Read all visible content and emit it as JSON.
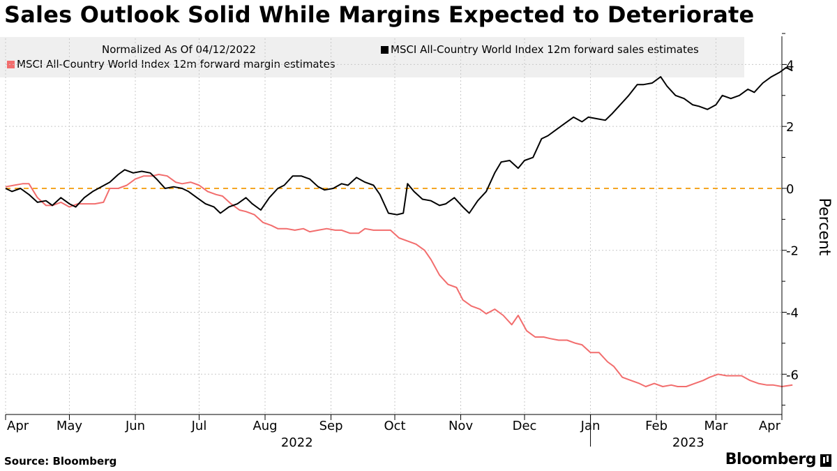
{
  "chart_data": {
    "type": "line",
    "title": "Sales Outlook Solid While Margins Expected to Deteriorate",
    "note": "Normalized As Of 04/12/2022",
    "ylabel": "Percent",
    "ylim": [
      -7.3,
      5
    ],
    "yticks": [
      -6,
      -4,
      -2,
      0,
      2,
      4
    ],
    "y_tick_labels": [
      "-6",
      "-4",
      "-2",
      "0",
      "2",
      "4"
    ],
    "xlim": [
      "2022-04-01",
      "2023-04-01"
    ],
    "x_ticks": [
      {
        "date": "2022-04-01",
        "label": "Apr"
      },
      {
        "date": "2022-05-01",
        "label": "May"
      },
      {
        "date": "2022-06-01",
        "label": "Jun"
      },
      {
        "date": "2022-07-01",
        "label": "Jul"
      },
      {
        "date": "2022-08-01",
        "label": "Aug"
      },
      {
        "date": "2022-09-01",
        "label": "Sep"
      },
      {
        "date": "2022-10-01",
        "label": "Oct"
      },
      {
        "date": "2022-11-01",
        "label": "Nov"
      },
      {
        "date": "2022-12-01",
        "label": "Dec"
      },
      {
        "date": "2023-01-01",
        "label": "Jan"
      },
      {
        "date": "2023-02-01",
        "label": "Feb"
      },
      {
        "date": "2023-03-01",
        "label": "Mar"
      },
      {
        "date": "2023-04-01",
        "label": "Apr"
      }
    ],
    "year_labels": [
      {
        "date": "2022-08-16",
        "label": "2022"
      },
      {
        "date": "2023-02-16",
        "label": "2023"
      }
    ],
    "grid": true,
    "legend_position": "top",
    "reference_line": {
      "y": 0,
      "color": "#f5a623",
      "style": "dashed"
    },
    "series": [
      {
        "name": "MSCI All-Country World Index 12m forward sales estimates",
        "color": "#000000",
        "points": [
          [
            "2022-04-01",
            0.0
          ],
          [
            "2022-04-04",
            -0.1
          ],
          [
            "2022-04-08",
            0.0
          ],
          [
            "2022-04-12",
            -0.2
          ],
          [
            "2022-04-16",
            -0.45
          ],
          [
            "2022-04-20",
            -0.4
          ],
          [
            "2022-04-23",
            -0.55
          ],
          [
            "2022-04-27",
            -0.3
          ],
          [
            "2022-05-01",
            -0.5
          ],
          [
            "2022-05-04",
            -0.6
          ],
          [
            "2022-05-08",
            -0.3
          ],
          [
            "2022-05-12",
            -0.1
          ],
          [
            "2022-05-16",
            0.05
          ],
          [
            "2022-05-20",
            0.2
          ],
          [
            "2022-05-24",
            0.45
          ],
          [
            "2022-05-27",
            0.6
          ],
          [
            "2022-05-31",
            0.5
          ],
          [
            "2022-06-04",
            0.55
          ],
          [
            "2022-06-08",
            0.5
          ],
          [
            "2022-06-11",
            0.3
          ],
          [
            "2022-06-15",
            0.0
          ],
          [
            "2022-06-19",
            0.05
          ],
          [
            "2022-06-23",
            0.0
          ],
          [
            "2022-06-26",
            -0.1
          ],
          [
            "2022-06-30",
            -0.3
          ],
          [
            "2022-07-04",
            -0.5
          ],
          [
            "2022-07-08",
            -0.6
          ],
          [
            "2022-07-11",
            -0.8
          ],
          [
            "2022-07-15",
            -0.6
          ],
          [
            "2022-07-19",
            -0.5
          ],
          [
            "2022-07-23",
            -0.3
          ],
          [
            "2022-07-26",
            -0.5
          ],
          [
            "2022-07-30",
            -0.7
          ],
          [
            "2022-08-03",
            -0.3
          ],
          [
            "2022-08-07",
            0.0
          ],
          [
            "2022-08-10",
            0.1
          ],
          [
            "2022-08-14",
            0.4
          ],
          [
            "2022-08-18",
            0.4
          ],
          [
            "2022-08-22",
            0.3
          ],
          [
            "2022-08-26",
            0.05
          ],
          [
            "2022-08-29",
            -0.05
          ],
          [
            "2022-09-02",
            0.0
          ],
          [
            "2022-09-06",
            0.15
          ],
          [
            "2022-09-09",
            0.1
          ],
          [
            "2022-09-13",
            0.35
          ],
          [
            "2022-09-17",
            0.2
          ],
          [
            "2022-09-21",
            0.1
          ],
          [
            "2022-09-24",
            -0.2
          ],
          [
            "2022-09-28",
            -0.8
          ],
          [
            "2022-10-02",
            -0.85
          ],
          [
            "2022-10-05",
            -0.8
          ],
          [
            "2022-10-07",
            0.15
          ],
          [
            "2022-10-10",
            -0.1
          ],
          [
            "2022-10-14",
            -0.35
          ],
          [
            "2022-10-18",
            -0.4
          ],
          [
            "2022-10-22",
            -0.55
          ],
          [
            "2022-10-25",
            -0.5
          ],
          [
            "2022-10-29",
            -0.3
          ],
          [
            "2022-11-02",
            -0.6
          ],
          [
            "2022-11-05",
            -0.8
          ],
          [
            "2022-11-09",
            -0.4
          ],
          [
            "2022-11-13",
            -0.1
          ],
          [
            "2022-11-17",
            0.5
          ],
          [
            "2022-11-20",
            0.85
          ],
          [
            "2022-11-24",
            0.9
          ],
          [
            "2022-11-28",
            0.65
          ],
          [
            "2022-12-01",
            0.9
          ],
          [
            "2022-12-05",
            1.0
          ],
          [
            "2022-12-09",
            1.6
          ],
          [
            "2022-12-12",
            1.7
          ],
          [
            "2022-12-16",
            1.9
          ],
          [
            "2022-12-20",
            2.1
          ],
          [
            "2022-12-24",
            2.3
          ],
          [
            "2022-12-28",
            2.15
          ],
          [
            "2022-12-31",
            2.3
          ],
          [
            "2023-01-04",
            2.25
          ],
          [
            "2023-01-08",
            2.2
          ],
          [
            "2023-01-11",
            2.4
          ],
          [
            "2023-01-15",
            2.7
          ],
          [
            "2023-01-19",
            3.0
          ],
          [
            "2023-01-23",
            3.35
          ],
          [
            "2023-01-26",
            3.35
          ],
          [
            "2023-01-30",
            3.4
          ],
          [
            "2023-02-03",
            3.6
          ],
          [
            "2023-02-06",
            3.3
          ],
          [
            "2023-02-10",
            3.0
          ],
          [
            "2023-02-14",
            2.9
          ],
          [
            "2023-02-18",
            2.7
          ],
          [
            "2023-02-21",
            2.65
          ],
          [
            "2023-02-25",
            2.55
          ],
          [
            "2023-03-01",
            2.7
          ],
          [
            "2023-03-04",
            3.0
          ],
          [
            "2023-03-08",
            2.9
          ],
          [
            "2023-03-12",
            3.0
          ],
          [
            "2023-03-16",
            3.2
          ],
          [
            "2023-03-19",
            3.1
          ],
          [
            "2023-03-23",
            3.4
          ],
          [
            "2023-03-27",
            3.6
          ],
          [
            "2023-03-31",
            3.75
          ],
          [
            "2023-04-03",
            3.9
          ],
          [
            "2023-04-06",
            3.8
          ]
        ]
      },
      {
        "name": "MSCI All-Country World Index 12m forward margin estimates",
        "color": "#f26d6d",
        "points": [
          [
            "2022-04-01",
            0.05
          ],
          [
            "2022-04-05",
            0.1
          ],
          [
            "2022-04-09",
            0.15
          ],
          [
            "2022-04-12",
            0.15
          ],
          [
            "2022-04-16",
            -0.3
          ],
          [
            "2022-04-20",
            -0.55
          ],
          [
            "2022-04-23",
            -0.55
          ],
          [
            "2022-04-27",
            -0.45
          ],
          [
            "2022-05-01",
            -0.6
          ],
          [
            "2022-05-05",
            -0.5
          ],
          [
            "2022-05-09",
            -0.5
          ],
          [
            "2022-05-13",
            -0.5
          ],
          [
            "2022-05-17",
            -0.45
          ],
          [
            "2022-05-20",
            0.0
          ],
          [
            "2022-05-24",
            0.0
          ],
          [
            "2022-05-28",
            0.1
          ],
          [
            "2022-06-01",
            0.3
          ],
          [
            "2022-06-05",
            0.4
          ],
          [
            "2022-06-09",
            0.4
          ],
          [
            "2022-06-12",
            0.45
          ],
          [
            "2022-06-16",
            0.4
          ],
          [
            "2022-06-20",
            0.2
          ],
          [
            "2022-06-23",
            0.15
          ],
          [
            "2022-06-27",
            0.2
          ],
          [
            "2022-07-01",
            0.1
          ],
          [
            "2022-07-05",
            -0.1
          ],
          [
            "2022-07-09",
            -0.2
          ],
          [
            "2022-07-12",
            -0.25
          ],
          [
            "2022-07-16",
            -0.5
          ],
          [
            "2022-07-20",
            -0.7
          ],
          [
            "2022-07-23",
            -0.75
          ],
          [
            "2022-07-27",
            -0.85
          ],
          [
            "2022-07-31",
            -1.1
          ],
          [
            "2022-08-04",
            -1.2
          ],
          [
            "2022-08-07",
            -1.3
          ],
          [
            "2022-08-11",
            -1.3
          ],
          [
            "2022-08-15",
            -1.35
          ],
          [
            "2022-08-19",
            -1.3
          ],
          [
            "2022-08-22",
            -1.4
          ],
          [
            "2022-08-26",
            -1.35
          ],
          [
            "2022-08-30",
            -1.3
          ],
          [
            "2022-09-03",
            -1.35
          ],
          [
            "2022-09-06",
            -1.35
          ],
          [
            "2022-09-10",
            -1.45
          ],
          [
            "2022-09-14",
            -1.45
          ],
          [
            "2022-09-17",
            -1.3
          ],
          [
            "2022-09-21",
            -1.35
          ],
          [
            "2022-09-25",
            -1.35
          ],
          [
            "2022-09-29",
            -1.35
          ],
          [
            "2022-10-03",
            -1.6
          ],
          [
            "2022-10-07",
            -1.7
          ],
          [
            "2022-10-11",
            -1.8
          ],
          [
            "2022-10-15",
            -2.0
          ],
          [
            "2022-10-18",
            -2.3
          ],
          [
            "2022-10-22",
            -2.8
          ],
          [
            "2022-10-26",
            -3.1
          ],
          [
            "2022-10-30",
            -3.2
          ],
          [
            "2022-11-02",
            -3.6
          ],
          [
            "2022-11-06",
            -3.8
          ],
          [
            "2022-11-10",
            -3.9
          ],
          [
            "2022-11-13",
            -4.05
          ],
          [
            "2022-11-17",
            -3.9
          ],
          [
            "2022-11-21",
            -4.1
          ],
          [
            "2022-11-25",
            -4.4
          ],
          [
            "2022-11-28",
            -4.1
          ],
          [
            "2022-12-02",
            -4.6
          ],
          [
            "2022-12-06",
            -4.8
          ],
          [
            "2022-12-10",
            -4.8
          ],
          [
            "2022-12-13",
            -4.85
          ],
          [
            "2022-12-17",
            -4.9
          ],
          [
            "2022-12-21",
            -4.9
          ],
          [
            "2022-12-25",
            -5.0
          ],
          [
            "2022-12-28",
            -5.05
          ],
          [
            "2023-01-01",
            -5.3
          ],
          [
            "2023-01-05",
            -5.3
          ],
          [
            "2023-01-09",
            -5.6
          ],
          [
            "2023-01-12",
            -5.75
          ],
          [
            "2023-01-16",
            -6.1
          ],
          [
            "2023-01-20",
            -6.2
          ],
          [
            "2023-01-24",
            -6.3
          ],
          [
            "2023-01-27",
            -6.4
          ],
          [
            "2023-01-31",
            -6.3
          ],
          [
            "2023-02-04",
            -6.4
          ],
          [
            "2023-02-08",
            -6.35
          ],
          [
            "2023-02-11",
            -6.4
          ],
          [
            "2023-02-15",
            -6.4
          ],
          [
            "2023-02-19",
            -6.3
          ],
          [
            "2023-02-23",
            -6.2
          ],
          [
            "2023-02-26",
            -6.1
          ],
          [
            "2023-03-02",
            -6.0
          ],
          [
            "2023-03-06",
            -6.05
          ],
          [
            "2023-03-10",
            -6.05
          ],
          [
            "2023-03-13",
            -6.05
          ],
          [
            "2023-03-17",
            -6.2
          ],
          [
            "2023-03-21",
            -6.3
          ],
          [
            "2023-03-25",
            -6.35
          ],
          [
            "2023-03-28",
            -6.35
          ],
          [
            "2023-04-01",
            -6.4
          ],
          [
            "2023-04-06",
            -6.35
          ]
        ]
      }
    ]
  },
  "footer": {
    "source": "Source: Bloomberg",
    "brand": "Bloomberg"
  }
}
